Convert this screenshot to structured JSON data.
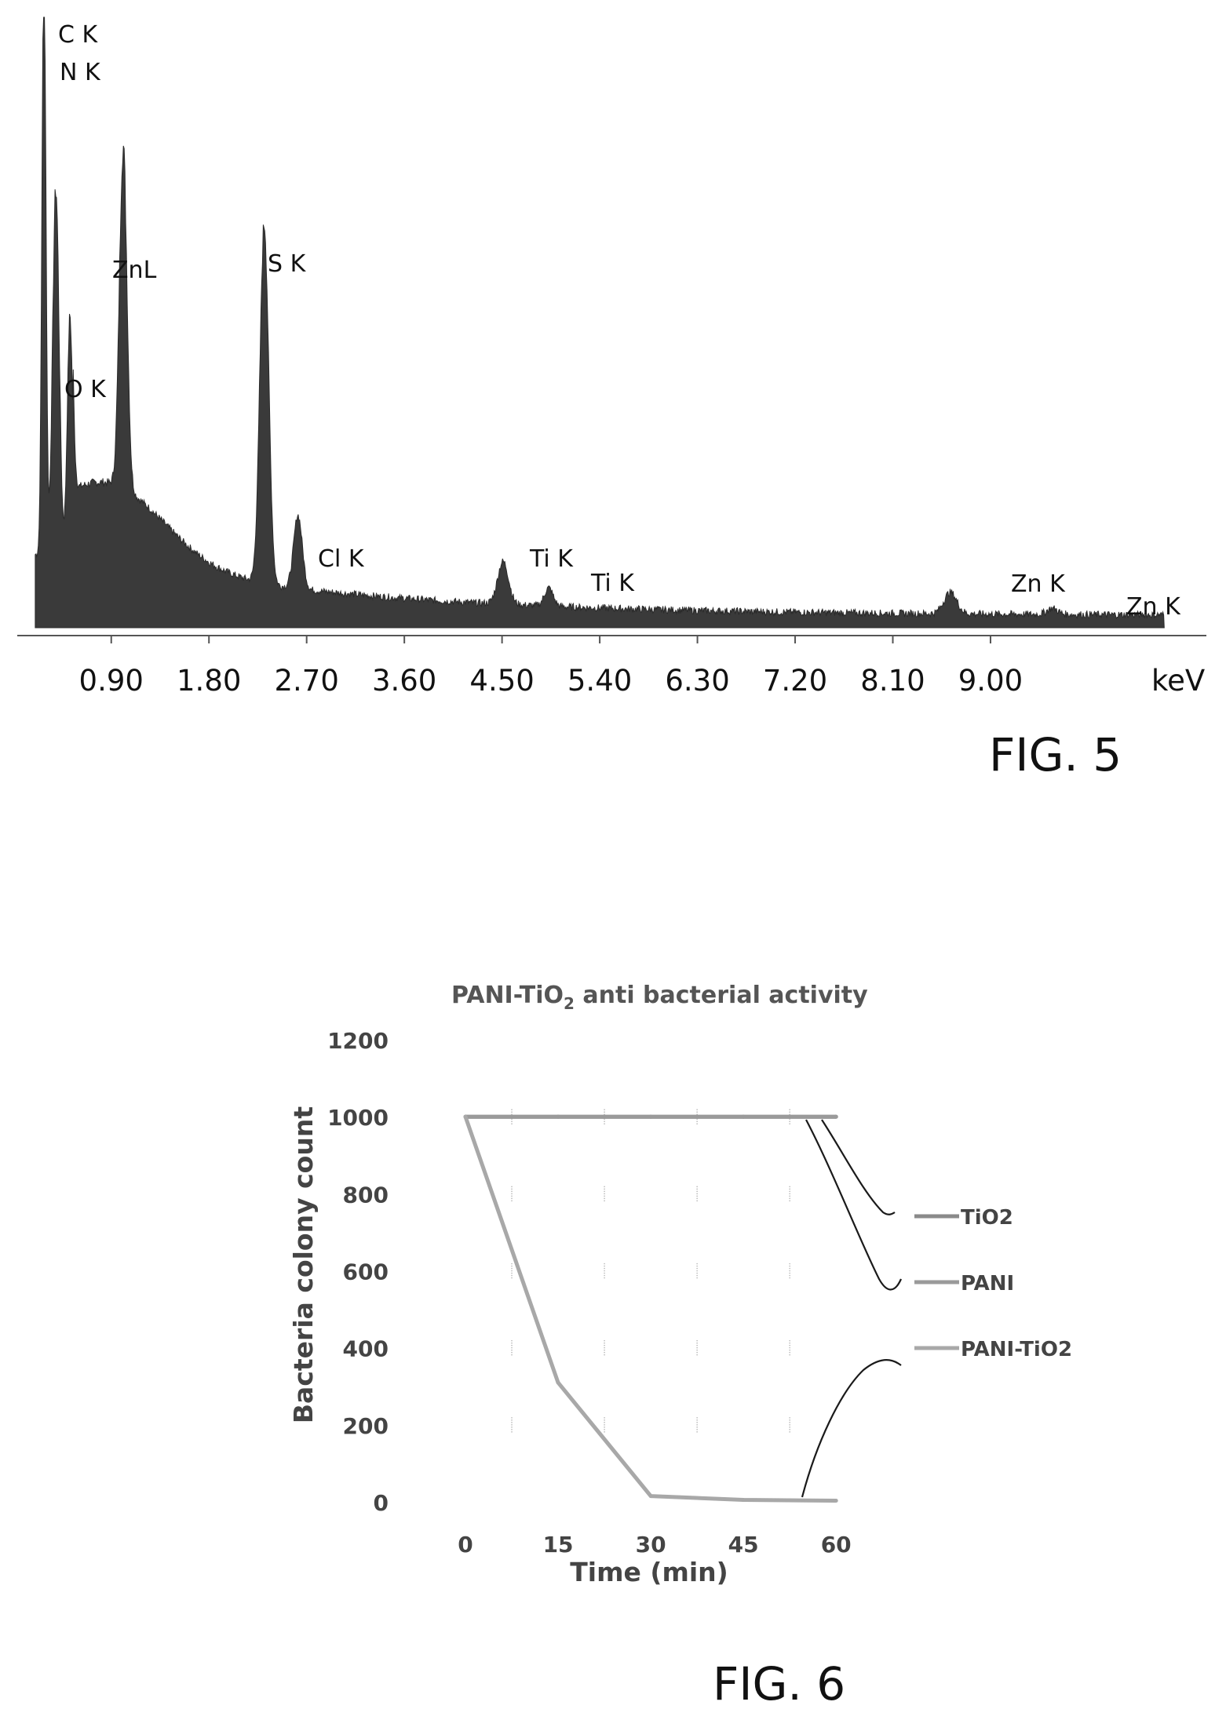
{
  "chart_data": [
    {
      "type": "area",
      "caption": "FIG. 5",
      "xunit": "keV",
      "xlim": [
        0,
        10.5
      ],
      "ylim": [
        0,
        100
      ],
      "grid": false,
      "x_ticks": [
        "0.90",
        "1.80",
        "2.70",
        "3.60",
        "4.50",
        "5.40",
        "6.30",
        "7.20",
        "8.10",
        "9.00"
      ],
      "x_tick_values": [
        0.9,
        1.8,
        2.7,
        3.6,
        4.5,
        5.4,
        6.3,
        7.2,
        8.1,
        9.0
      ],
      "peaks": [
        {
          "label": "C K",
          "energy": 0.28,
          "height": 100
        },
        {
          "label": "N K",
          "energy": 0.39,
          "height": 60
        },
        {
          "label": "O K",
          "energy": 0.52,
          "height": 39
        },
        {
          "label": "ZnL",
          "energy": 1.01,
          "height": 56
        },
        {
          "label": "S K",
          "energy": 2.31,
          "height": 59
        },
        {
          "label": "Cl K",
          "energy": 2.62,
          "height": 12
        },
        {
          "label": "Ti K",
          "energy": 4.51,
          "height": 7
        },
        {
          "label": "Ti K",
          "energy": 4.93,
          "height": 3
        },
        {
          "label": "Zn K",
          "energy": 8.63,
          "height": 3.5
        },
        {
          "label": "Zn K",
          "energy": 9.57,
          "height": 1
        }
      ],
      "peak_labels": {
        "ck": "C K",
        "nk": "N K",
        "ok": "O K",
        "znl": "ZnL",
        "sk": "S K",
        "clk": "Cl K",
        "tik1": "Ti K",
        "tik2": "Ti K",
        "znk1": "Zn K",
        "znk2": "Zn K"
      },
      "color": "#3a3a3a"
    },
    {
      "type": "line",
      "caption": "FIG. 6",
      "title_main": "PANI-TiO",
      "title_sub": "2",
      "title_rest": " anti bacterial activity",
      "xlabel": "Time (min)",
      "ylabel": "Bacteria colony count",
      "x": [
        0,
        15,
        30,
        45,
        60
      ],
      "x_ticks": [
        "0",
        "15",
        "30",
        "45",
        "60"
      ],
      "y_ticks": [
        "0",
        "200",
        "400",
        "600",
        "800",
        "1000",
        "1200"
      ],
      "y_tick_values": [
        0,
        200,
        400,
        600,
        800,
        1000,
        1200
      ],
      "ylim": [
        0,
        1200
      ],
      "grid": "dotted",
      "legend_placement": "right",
      "series": [
        {
          "name": "TiO2",
          "values": [
            1000,
            1000,
            1000,
            1000,
            1000
          ],
          "color": "#8a8a8a"
        },
        {
          "name": "PANI",
          "values": [
            1000,
            1000,
            1000,
            1000,
            1000
          ],
          "color": "#9a9a9a"
        },
        {
          "name": "PANI-TiO2",
          "values": [
            1000,
            310,
            15,
            5,
            3
          ],
          "color": "#a8a8a8"
        }
      ]
    }
  ]
}
